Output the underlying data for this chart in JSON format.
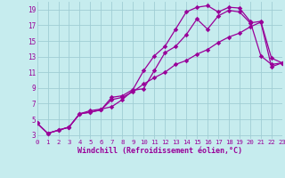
{
  "xlabel": "Windchill (Refroidissement éolien,°C)",
  "bg_color": "#c6ecee",
  "grid_color": "#a0cdd4",
  "line_color": "#990099",
  "xlim": [
    0,
    23
  ],
  "ylim": [
    2.5,
    20
  ],
  "xticks": [
    0,
    1,
    2,
    3,
    4,
    5,
    6,
    7,
    8,
    9,
    10,
    11,
    12,
    13,
    14,
    15,
    16,
    17,
    18,
    19,
    20,
    21,
    22,
    23
  ],
  "yticks": [
    3,
    5,
    7,
    9,
    11,
    13,
    15,
    17,
    19
  ],
  "line1_x": [
    0,
    1,
    2,
    3,
    4,
    5,
    6,
    7,
    8,
    9,
    10,
    11,
    12,
    13,
    14,
    15,
    16,
    17,
    18,
    19,
    20,
    21,
    22,
    23
  ],
  "line1_y": [
    4.5,
    3.2,
    3.6,
    4.0,
    5.7,
    5.9,
    6.2,
    7.8,
    8.0,
    8.8,
    11.2,
    13.1,
    14.3,
    16.5,
    18.7,
    19.3,
    19.5,
    18.7,
    19.3,
    19.2,
    17.5,
    13.1,
    12.0,
    12.2
  ],
  "line2_x": [
    0,
    1,
    2,
    3,
    4,
    5,
    6,
    7,
    8,
    9,
    10,
    11,
    12,
    13,
    14,
    15,
    16,
    17,
    18,
    19,
    20,
    21,
    22,
    23
  ],
  "line2_y": [
    4.5,
    3.2,
    3.6,
    4.0,
    5.7,
    6.1,
    6.3,
    6.6,
    7.5,
    8.7,
    8.9,
    11.2,
    13.5,
    14.3,
    15.8,
    17.8,
    16.5,
    18.2,
    18.9,
    18.7,
    17.3,
    17.5,
    12.8,
    12.2
  ],
  "line3_x": [
    0,
    1,
    2,
    3,
    4,
    5,
    6,
    7,
    8,
    9,
    10,
    11,
    12,
    13,
    14,
    15,
    16,
    17,
    18,
    19,
    20,
    21,
    22,
    23
  ],
  "line3_y": [
    4.5,
    3.2,
    3.6,
    4.0,
    5.7,
    5.9,
    6.2,
    7.5,
    7.8,
    8.5,
    9.5,
    10.3,
    11.0,
    12.0,
    12.5,
    13.3,
    13.9,
    14.8,
    15.5,
    16.0,
    16.8,
    17.4,
    11.7,
    12.2
  ]
}
